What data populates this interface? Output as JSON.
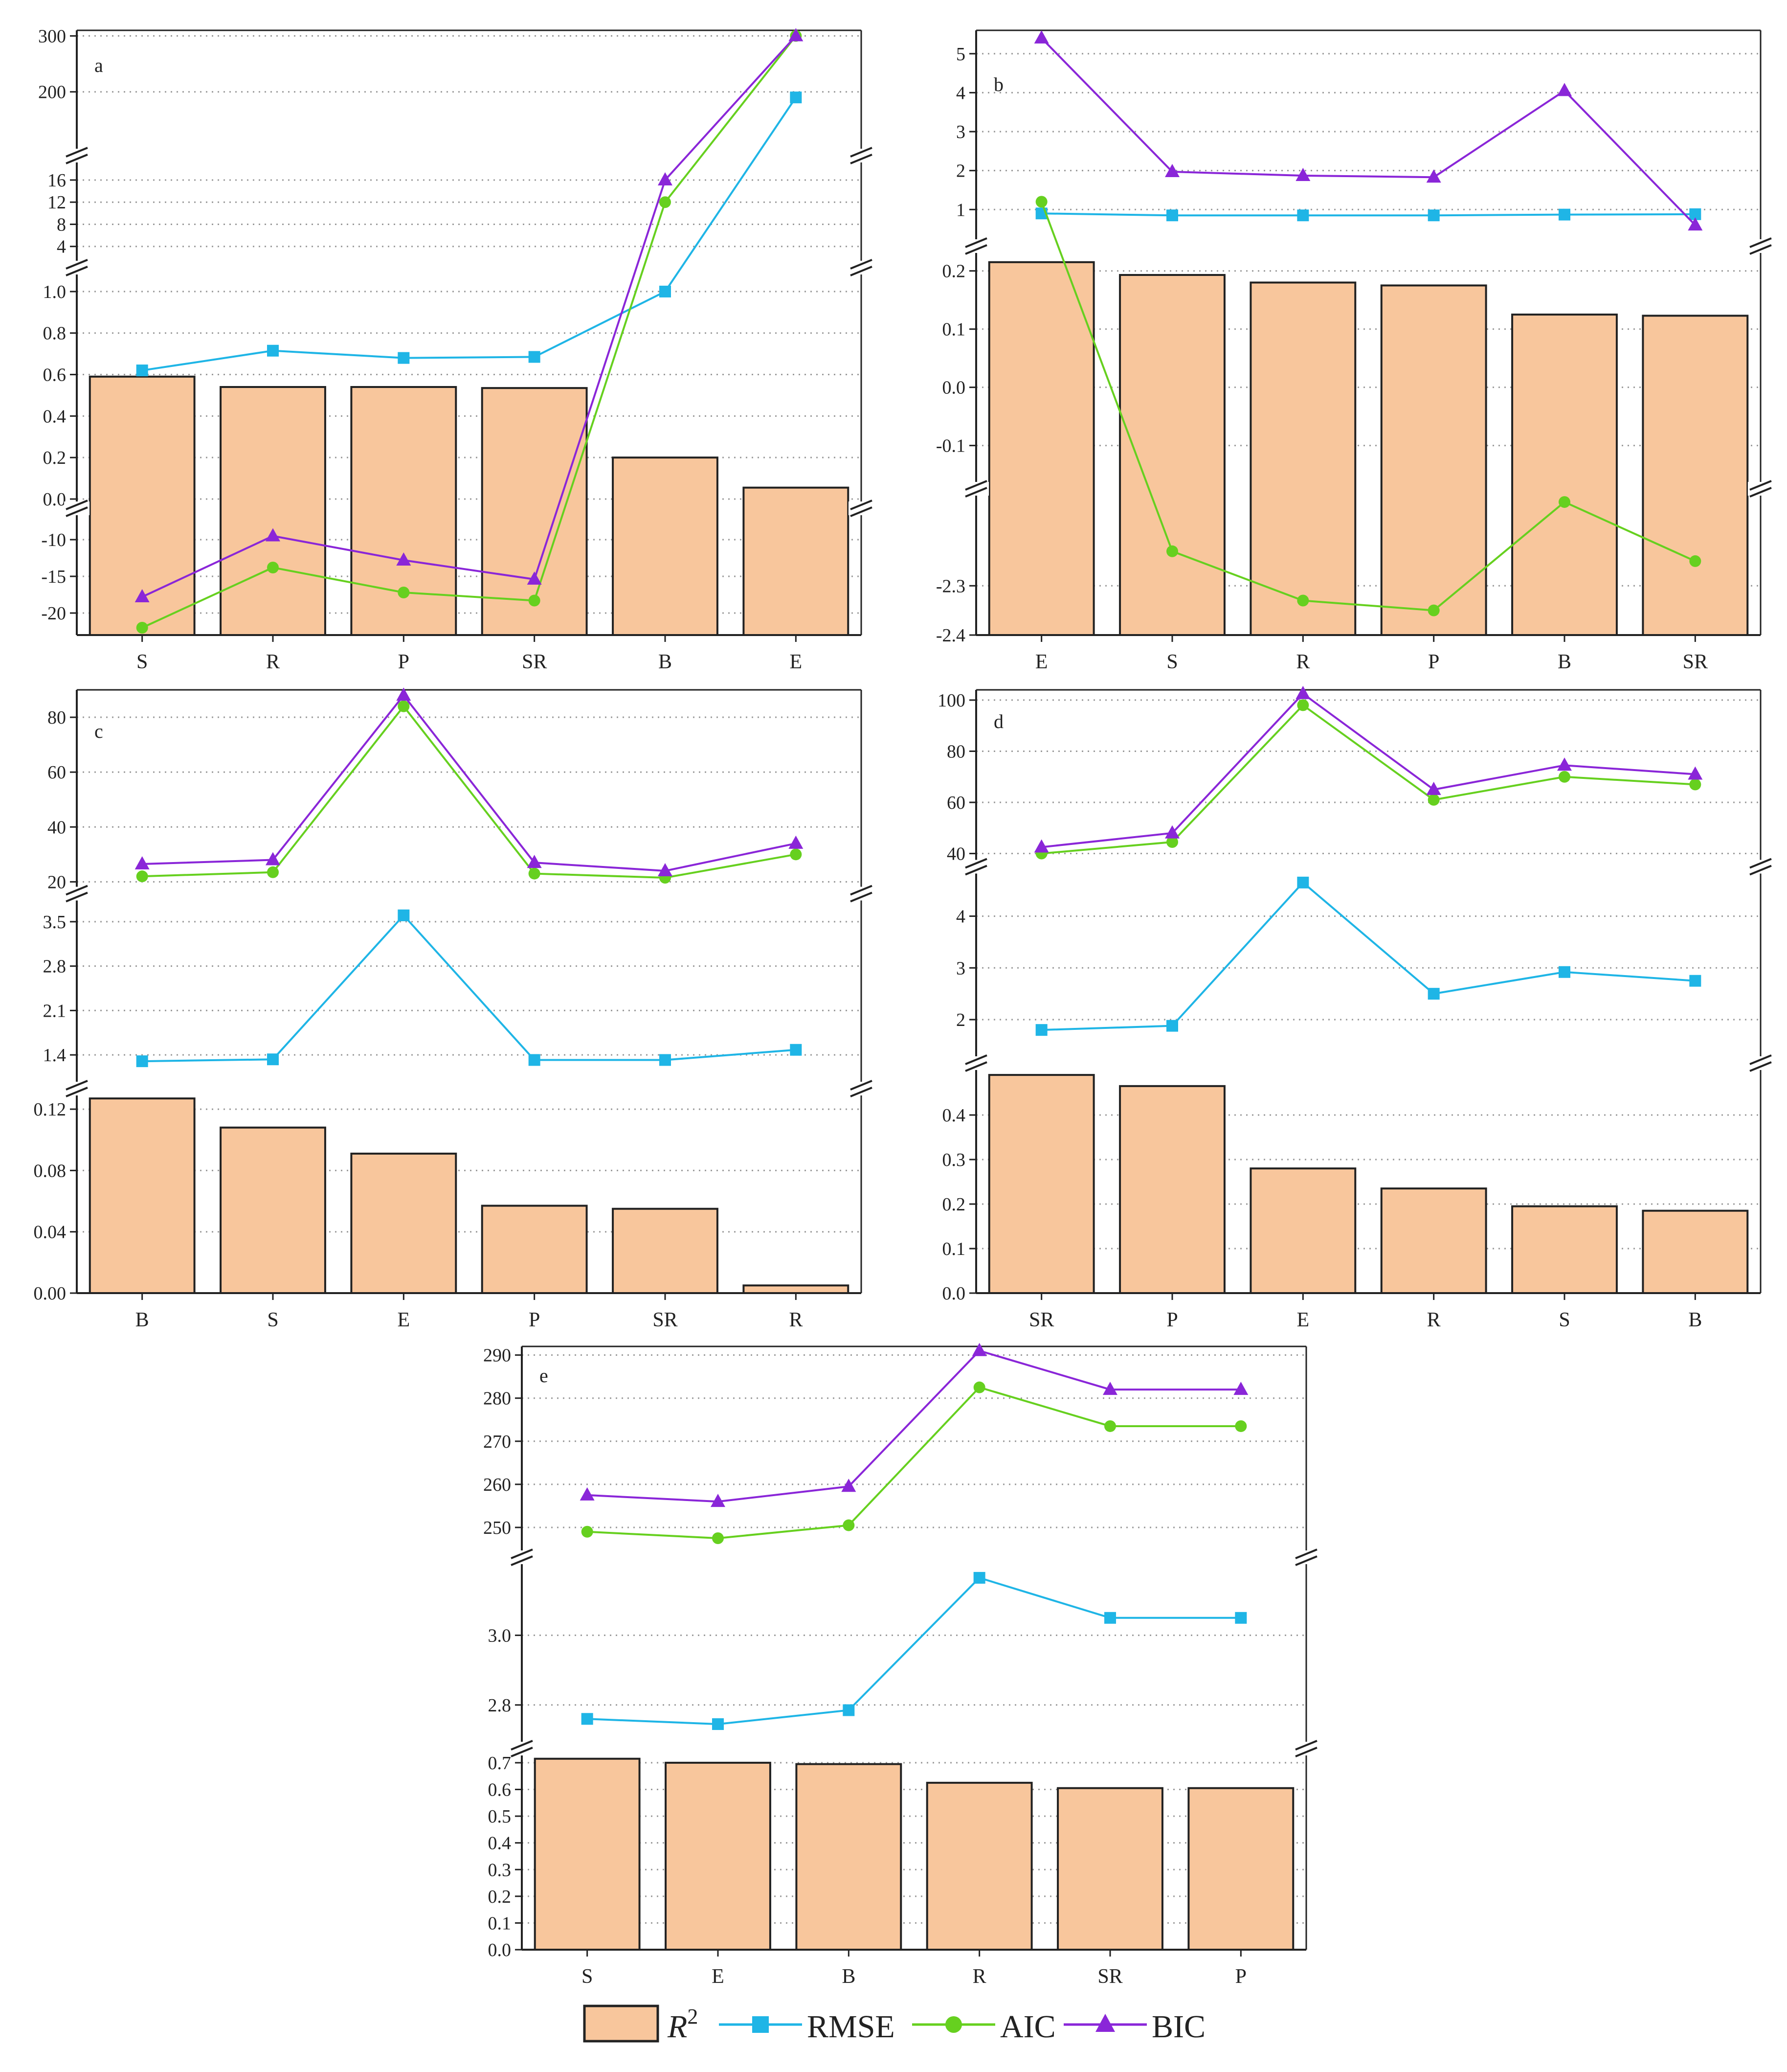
{
  "figure": {
    "legend": [
      {
        "key": "r2",
        "label": "R",
        "sup": "2",
        "kind": "bar"
      },
      {
        "key": "rmse",
        "label": "RMSE",
        "kind": "square"
      },
      {
        "key": "aic",
        "label": "AIC",
        "kind": "circle"
      },
      {
        "key": "bic",
        "label": "BIC",
        "kind": "triangle"
      }
    ],
    "colors": {
      "bar_fill": "#f8c69c",
      "bar_stroke": "#222222",
      "rmse": "#1fb5e6",
      "aic": "#66d01f",
      "bic": "#8a26d8",
      "grid": "#9a9a9a",
      "axis": "#222222"
    }
  },
  "chart_data": [
    {
      "panel": "a",
      "type": "bar+line",
      "categories": [
        "S",
        "R",
        "P",
        "SR",
        "B",
        "E"
      ],
      "series": [
        {
          "name": "R2",
          "type": "bar",
          "values": [
            0.59,
            0.54,
            0.54,
            0.535,
            0.2,
            0.055
          ]
        },
        {
          "name": "RMSE",
          "type": "line",
          "values": [
            0.62,
            0.715,
            0.68,
            0.685,
            1.0,
            190
          ]
        },
        {
          "name": "AIC",
          "type": "line",
          "values": [
            -22,
            -13.8,
            -17.2,
            -18.3,
            12,
            300
          ]
        },
        {
          "name": "BIC",
          "type": "line",
          "values": [
            -17.8,
            -9.5,
            -12.8,
            -15.4,
            16,
            300
          ]
        }
      ],
      "axis_segments": [
        {
          "range": [
            -23,
            -7
          ],
          "ticks": [
            -20,
            -15,
            -10
          ]
        },
        {
          "range": [
            0,
            1.08
          ],
          "ticks": [
            0.0,
            0.2,
            0.4,
            0.6,
            0.8,
            1.0
          ]
        },
        {
          "range": [
            1.5,
            19
          ],
          "ticks": [
            4,
            8,
            12,
            16
          ]
        },
        {
          "range": [
            100,
            310
          ],
          "ticks": [
            200,
            300
          ]
        }
      ]
    },
    {
      "panel": "b",
      "type": "bar+line",
      "categories": [
        "E",
        "S",
        "R",
        "P",
        "B",
        "SR"
      ],
      "series": [
        {
          "name": "R2",
          "type": "bar",
          "values": [
            0.215,
            0.193,
            0.18,
            0.175,
            0.125,
            0.123
          ]
        },
        {
          "name": "RMSE",
          "type": "line",
          "values": [
            0.9,
            0.85,
            0.85,
            0.85,
            0.87,
            0.88
          ]
        },
        {
          "name": "AIC",
          "type": "line",
          "values": [
            1.2,
            -2.23,
            -2.33,
            -2.35,
            -2.13,
            -2.25
          ]
        },
        {
          "name": "BIC",
          "type": "line",
          "values": [
            5.4,
            1.97,
            1.87,
            1.83,
            4.05,
            0.6
          ]
        }
      ],
      "axis_segments": [
        {
          "range": [
            -2.4,
            -2.12
          ],
          "ticks": [
            -2.4,
            -2.3
          ]
        },
        {
          "range": [
            -0.16,
            0.23
          ],
          "ticks": [
            -0.1,
            0.0,
            0.1,
            0.2
          ]
        },
        {
          "range": [
            0.25,
            5.6
          ],
          "ticks": [
            1,
            2,
            3,
            4,
            5
          ]
        }
      ]
    },
    {
      "panel": "c",
      "type": "bar+line",
      "categories": [
        "B",
        "S",
        "E",
        "P",
        "SR",
        "R"
      ],
      "series": [
        {
          "name": "R2",
          "type": "bar",
          "values": [
            0.127,
            0.108,
            0.091,
            0.057,
            0.055,
            0.005
          ]
        },
        {
          "name": "RMSE",
          "type": "line",
          "values": [
            1.3,
            1.33,
            3.6,
            1.32,
            1.32,
            1.48
          ]
        },
        {
          "name": "AIC",
          "type": "line",
          "values": [
            22,
            23.5,
            84,
            23,
            21.5,
            30
          ]
        },
        {
          "name": "BIC",
          "type": "line",
          "values": [
            26.5,
            28,
            88,
            27,
            24,
            34
          ]
        }
      ],
      "axis_segments": [
        {
          "range": [
            0,
            0.128
          ],
          "ticks": [
            0.0,
            0.04,
            0.08,
            0.12
          ]
        },
        {
          "range": [
            1.0,
            3.8
          ],
          "ticks": [
            1.4,
            2.1,
            2.8,
            3.5
          ]
        },
        {
          "range": [
            19,
            90
          ],
          "ticks": [
            20,
            40,
            60,
            80
          ]
        }
      ]
    },
    {
      "panel": "d",
      "type": "bar+line",
      "categories": [
        "SR",
        "P",
        "E",
        "R",
        "S",
        "B"
      ],
      "series": [
        {
          "name": "R2",
          "type": "bar",
          "values": [
            0.49,
            0.465,
            0.28,
            0.235,
            0.195,
            0.185
          ]
        },
        {
          "name": "RMSE",
          "type": "line",
          "values": [
            1.8,
            1.88,
            4.65,
            2.5,
            2.92,
            2.75
          ]
        },
        {
          "name": "AIC",
          "type": "line",
          "values": [
            40,
            44.5,
            98,
            61,
            70,
            67
          ]
        },
        {
          "name": "BIC",
          "type": "line",
          "values": [
            42.5,
            48,
            102.5,
            65,
            74.5,
            71
          ]
        }
      ],
      "axis_segments": [
        {
          "range": [
            0,
            0.5
          ],
          "ticks": [
            0.0,
            0.1,
            0.2,
            0.3,
            0.4
          ]
        },
        {
          "range": [
            1.3,
            4.8
          ],
          "ticks": [
            2,
            3,
            4
          ]
        },
        {
          "range": [
            38,
            104
          ],
          "ticks": [
            40,
            60,
            80,
            100
          ]
        }
      ]
    },
    {
      "panel": "e",
      "type": "bar+line",
      "categories": [
        "S",
        "E",
        "B",
        "R",
        "SR",
        "P"
      ],
      "series": [
        {
          "name": "R2",
          "type": "bar",
          "values": [
            0.715,
            0.7,
            0.695,
            0.625,
            0.605,
            0.605
          ]
        },
        {
          "name": "RMSE",
          "type": "line",
          "values": [
            2.76,
            2.745,
            2.785,
            3.165,
            3.05,
            3.05
          ]
        },
        {
          "name": "AIC",
          "type": "line",
          "values": [
            249,
            247.5,
            250.5,
            282.5,
            273.5,
            273.5
          ]
        },
        {
          "name": "BIC",
          "type": "line",
          "values": [
            257.5,
            256,
            259.5,
            291,
            282,
            282
          ]
        }
      ],
      "axis_segments": [
        {
          "range": [
            0,
            0.72
          ],
          "ticks": [
            0.0,
            0.1,
            0.2,
            0.3,
            0.4,
            0.5,
            0.6,
            0.7
          ]
        },
        {
          "range": [
            2.7,
            3.2
          ],
          "ticks": [
            2.8,
            3.0
          ]
        },
        {
          "range": [
            245,
            292
          ],
          "ticks": [
            250,
            260,
            270,
            280,
            290
          ]
        }
      ]
    }
  ]
}
